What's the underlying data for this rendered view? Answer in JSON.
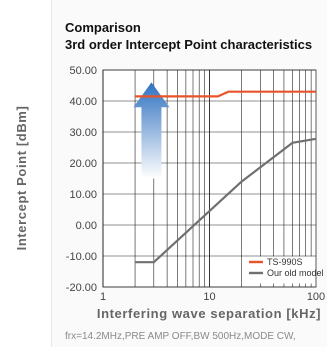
{
  "chart_data": {
    "type": "line",
    "title": "Comparison",
    "subtitle": "3rd order Intercept Point characteristics",
    "xlabel": "Interfering wave separation [kHz]",
    "ylabel": "Intercept Point [dBm]",
    "x_scale": "log",
    "xlim": [
      1,
      100
    ],
    "ylim": [
      -20,
      50
    ],
    "grid": true,
    "legend_position": "bottom-right",
    "x_ticks": [
      1,
      10,
      100
    ],
    "x_tick_labels": [
      "1",
      "10",
      "100"
    ],
    "y_ticks": [
      -20,
      -10,
      0,
      10,
      20,
      30,
      40,
      50
    ],
    "y_tick_labels": [
      "-20.00",
      "-10.00",
      "0.00",
      "10.00",
      "20.00",
      "30.00",
      "40.00",
      "50.00"
    ],
    "series": [
      {
        "name": "TS-990S",
        "color": "#e8542a",
        "x": [
          2,
          12,
          15,
          100
        ],
        "y": [
          41.5,
          41.5,
          43,
          43
        ]
      },
      {
        "name": "Our old model",
        "color": "#707070",
        "x": [
          2,
          3,
          20,
          60,
          100
        ],
        "y": [
          -12,
          -12,
          14,
          26.5,
          27.8
        ]
      }
    ],
    "annotation": "frx=14.2MHz,PRE AMP OFF,BW 500Hz,MODE CW,",
    "arrow_icon": "up-arrow-icon"
  }
}
